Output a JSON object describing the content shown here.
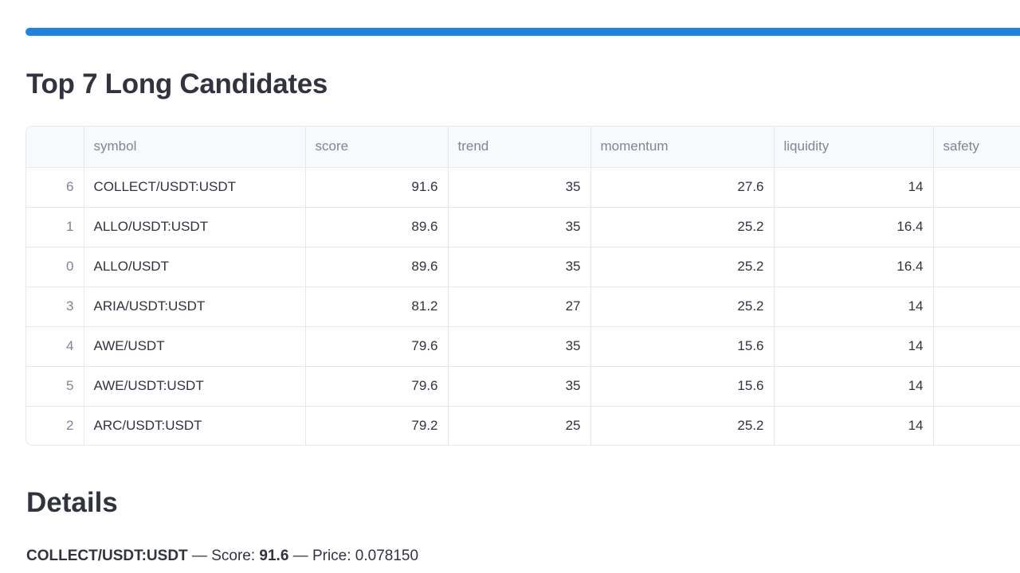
{
  "progress": {
    "value": 1.0,
    "color": "#1c83e1"
  },
  "heading": "Top 7 Long Candidates",
  "table": {
    "columns": [
      "",
      "symbol",
      "score",
      "trend",
      "momentum",
      "liquidity",
      "safety"
    ],
    "rows": [
      {
        "index": "6",
        "symbol": "COLLECT/USDT:USDT",
        "score": "91.6",
        "trend": "35",
        "momentum": "27.6",
        "liquidity": "14",
        "safety": ""
      },
      {
        "index": "1",
        "symbol": "ALLO/USDT:USDT",
        "score": "89.6",
        "trend": "35",
        "momentum": "25.2",
        "liquidity": "16.4",
        "safety": ""
      },
      {
        "index": "0",
        "symbol": "ALLO/USDT",
        "score": "89.6",
        "trend": "35",
        "momentum": "25.2",
        "liquidity": "16.4",
        "safety": ""
      },
      {
        "index": "3",
        "symbol": "ARIA/USDT:USDT",
        "score": "81.2",
        "trend": "27",
        "momentum": "25.2",
        "liquidity": "14",
        "safety": ""
      },
      {
        "index": "4",
        "symbol": "AWE/USDT",
        "score": "79.6",
        "trend": "35",
        "momentum": "15.6",
        "liquidity": "14",
        "safety": ""
      },
      {
        "index": "5",
        "symbol": "AWE/USDT:USDT",
        "score": "79.6",
        "trend": "35",
        "momentum": "15.6",
        "liquidity": "14",
        "safety": ""
      },
      {
        "index": "2",
        "symbol": "ARC/USDT:USDT",
        "score": "79.2",
        "trend": "25",
        "momentum": "25.2",
        "liquidity": "14",
        "safety": ""
      }
    ]
  },
  "details": {
    "heading": "Details",
    "symbol": "COLLECT/USDT:USDT",
    "sep1": " — Score: ",
    "score": "91.6",
    "sep2": " — Price: ",
    "price": "0.078150"
  }
}
